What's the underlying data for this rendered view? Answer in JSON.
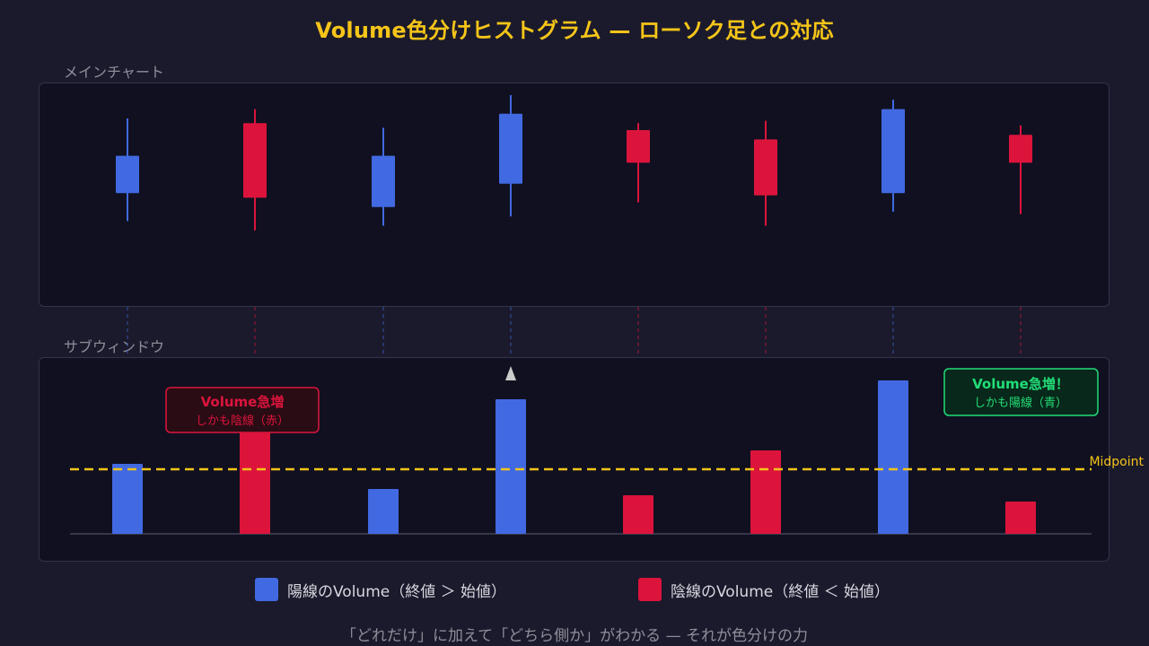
{
  "title": "Volume色分けヒストグラム — ローソク足との対応",
  "main_label": "メインチャート",
  "sub_label": "サブウィンドウ",
  "colors": {
    "bullish": "#4169e1",
    "bearish": "#dc143c",
    "midpoint": "#f5c518",
    "accent_green": "#22dd77"
  },
  "chart_data": {
    "type": "bar",
    "candles": [
      {
        "direction": "up",
        "open": 48,
        "close": 64,
        "high": 80,
        "low": 36
      },
      {
        "direction": "down",
        "open": 78,
        "close": 46,
        "high": 84,
        "low": 32
      },
      {
        "direction": "up",
        "open": 42,
        "close": 64,
        "high": 76,
        "low": 34
      },
      {
        "direction": "up",
        "open": 52,
        "close": 82,
        "high": 90,
        "low": 38
      },
      {
        "direction": "down",
        "open": 75,
        "close": 61,
        "high": 78,
        "low": 44
      },
      {
        "direction": "down",
        "open": 71,
        "close": 47,
        "high": 79,
        "low": 34
      },
      {
        "direction": "up",
        "open": 48,
        "close": 84,
        "high": 88,
        "low": 40
      },
      {
        "direction": "down",
        "open": 73,
        "close": 61,
        "high": 77,
        "low": 39
      }
    ],
    "volumes": [
      {
        "direction": "up",
        "value": 78
      },
      {
        "direction": "down",
        "value": 116
      },
      {
        "direction": "up",
        "value": 50
      },
      {
        "direction": "up",
        "value": 150
      },
      {
        "direction": "down",
        "value": 43
      },
      {
        "direction": "down",
        "value": 93
      },
      {
        "direction": "up",
        "value": 171
      },
      {
        "direction": "down",
        "value": 36
      }
    ],
    "volume_max": 200,
    "midpoint": 72,
    "midpoint_label": "Midpoint"
  },
  "annotations": {
    "left": {
      "title": "Volume急増",
      "sub": "しかも陰線（赤）"
    },
    "right": {
      "title": "Volume急増！",
      "sub": "しかも陽線（青）"
    }
  },
  "legend": {
    "bullish": "陽線のVolume（終値 ＞ 始値）",
    "bearish": "陰線のVolume（終値 ＜ 始値）"
  },
  "footer": "「どれだけ」に加えて「どちら側か」がわかる — それが色分けの力"
}
